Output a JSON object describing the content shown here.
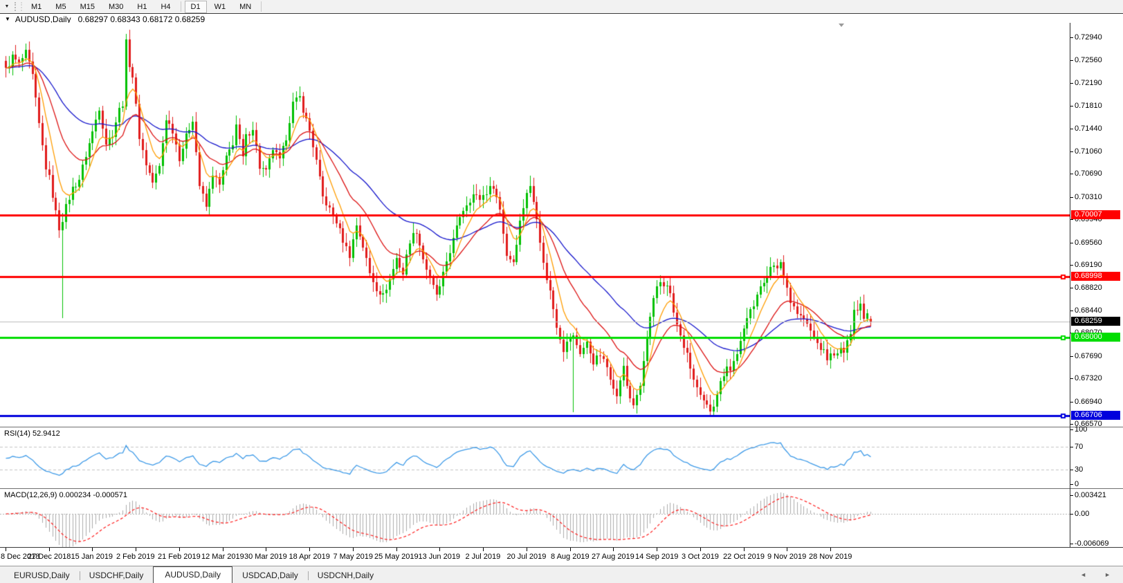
{
  "toolbar": {
    "dropdown_icon": "timeframe-dropdown",
    "timeframes": [
      {
        "label": "M1",
        "active": false
      },
      {
        "label": "M5",
        "active": false
      },
      {
        "label": "M15",
        "active": false
      },
      {
        "label": "M30",
        "active": false
      },
      {
        "label": "H1",
        "active": false
      },
      {
        "label": "H4",
        "active": false
      },
      {
        "label": "D1",
        "active": true
      },
      {
        "label": "W1",
        "active": false
      },
      {
        "label": "MN",
        "active": false
      }
    ]
  },
  "title": {
    "symbol": "AUDUSD,Daily",
    "ohlc": "0.68297 0.68343 0.68172 0.68259"
  },
  "chart_data": {
    "type": "candlestick",
    "symbol": "AUDUSD",
    "timeframe": "Daily",
    "current_bar": {
      "open": 0.68297,
      "high": 0.68343,
      "low": 0.68172,
      "close": 0.68259
    },
    "bar_count": 260,
    "y_axis_ticks": [
      "0.72940",
      "0.72560",
      "0.72190",
      "0.71810",
      "0.71440",
      "0.71060",
      "0.70690",
      "0.70310",
      "0.69940",
      "0.69560",
      "0.69190",
      "0.68820",
      "0.68440",
      "0.68070",
      "0.67690",
      "0.67320",
      "0.66940",
      "0.66570"
    ],
    "x_axis_labels": [
      "8 Dec 2018",
      "27 Dec 2018",
      "15 Jan 2019",
      "2 Feb 2019",
      "21 Feb 2019",
      "12 Mar 2019",
      "30 Mar 2019",
      "18 Apr 2019",
      "7 May 2019",
      "25 May 2019",
      "13 Jun 2019",
      "2 Jul 2019",
      "20 Jul 2019",
      "8 Aug 2019",
      "27 Aug 2019",
      "14 Sep 2019",
      "3 Oct 2019",
      "22 Oct 2019",
      "9 Nov 2019",
      "28 Nov 2019"
    ],
    "bars_per_label": 13,
    "candle_colors": {
      "bull": "#00c000",
      "bear": "#e11b1b"
    },
    "ma_colors": [
      "#ff9d00",
      "#dd1111",
      "#1414cc"
    ],
    "hlines": [
      {
        "price": 0.70007,
        "label": "0.70007",
        "color": "#ff0000",
        "handle": false
      },
      {
        "price": 0.68998,
        "label": "0.68998",
        "color": "#ff0000",
        "handle": true
      },
      {
        "price": 0.68,
        "label": "0.68000",
        "color": "#00dd00",
        "handle": true
      },
      {
        "price": 0.66706,
        "label": "0.66706",
        "color": "#0000dd",
        "handle": true
      }
    ],
    "current_price_line": {
      "price": 0.68259,
      "label": "0.68259",
      "line_color": "#bdbdbd",
      "tag_bg": "#000000"
    },
    "price_waypoints": [
      [
        0,
        0.724
      ],
      [
        2,
        0.7262
      ],
      [
        4,
        0.725
      ],
      [
        6,
        0.7268
      ],
      [
        8,
        0.723
      ],
      [
        10,
        0.715
      ],
      [
        12,
        0.708
      ],
      [
        13,
        0.7062
      ],
      [
        15,
        0.7005
      ],
      [
        16,
        0.698
      ],
      [
        17,
        0.6995
      ],
      [
        18,
        0.7015
      ],
      [
        20,
        0.7045
      ],
      [
        22,
        0.706
      ],
      [
        24,
        0.71
      ],
      [
        26,
        0.7138
      ],
      [
        28,
        0.7178
      ],
      [
        30,
        0.712
      ],
      [
        32,
        0.7135
      ],
      [
        34,
        0.7175
      ],
      [
        35,
        0.7185
      ],
      [
        36,
        0.7285
      ],
      [
        37,
        0.725
      ],
      [
        38,
        0.723
      ],
      [
        40,
        0.713
      ],
      [
        42,
        0.7085
      ],
      [
        44,
        0.7055
      ],
      [
        46,
        0.708
      ],
      [
        48,
        0.716
      ],
      [
        50,
        0.714
      ],
      [
        52,
        0.7095
      ],
      [
        54,
        0.713
      ],
      [
        56,
        0.716
      ],
      [
        58,
        0.705
      ],
      [
        60,
        0.7015
      ],
      [
        62,
        0.707
      ],
      [
        64,
        0.705
      ],
      [
        66,
        0.7095
      ],
      [
        68,
        0.712
      ],
      [
        69,
        0.715
      ],
      [
        71,
        0.7095
      ],
      [
        72,
        0.713
      ],
      [
        74,
        0.7145
      ],
      [
        76,
        0.708
      ],
      [
        78,
        0.7072
      ],
      [
        80,
        0.711
      ],
      [
        82,
        0.709
      ],
      [
        84,
        0.713
      ],
      [
        86,
        0.7185
      ],
      [
        88,
        0.7195
      ],
      [
        89,
        0.7175
      ],
      [
        91,
        0.714
      ],
      [
        93,
        0.709
      ],
      [
        95,
        0.703
      ],
      [
        97,
        0.701
      ],
      [
        99,
        0.699
      ],
      [
        101,
        0.696
      ],
      [
        103,
        0.6935
      ],
      [
        105,
        0.6985
      ],
      [
        107,
        0.695
      ],
      [
        109,
        0.6905
      ],
      [
        111,
        0.688
      ],
      [
        113,
        0.6868
      ],
      [
        115,
        0.6895
      ],
      [
        117,
        0.693
      ],
      [
        119,
        0.6905
      ],
      [
        121,
        0.696
      ],
      [
        123,
        0.6975
      ],
      [
        125,
        0.693
      ],
      [
        127,
        0.6895
      ],
      [
        129,
        0.687
      ],
      [
        130,
        0.688
      ],
      [
        132,
        0.6925
      ],
      [
        134,
        0.696
      ],
      [
        136,
        0.7
      ],
      [
        138,
        0.702
      ],
      [
        140,
        0.7035
      ],
      [
        142,
        0.7028
      ],
      [
        144,
        0.704
      ],
      [
        146,
        0.705
      ],
      [
        148,
        0.701
      ],
      [
        150,
        0.6935
      ],
      [
        152,
        0.6925
      ],
      [
        154,
        0.699
      ],
      [
        156,
        0.704
      ],
      [
        157,
        0.7047
      ],
      [
        159,
        0.7
      ],
      [
        161,
        0.692
      ],
      [
        163,
        0.6875
      ],
      [
        165,
        0.682
      ],
      [
        167,
        0.678
      ],
      [
        169,
        0.68
      ],
      [
        170,
        0.68
      ],
      [
        172,
        0.6775
      ],
      [
        174,
        0.679
      ],
      [
        176,
        0.676
      ],
      [
        178,
        0.677
      ],
      [
        180,
        0.675
      ],
      [
        182,
        0.672
      ],
      [
        183,
        0.67
      ],
      [
        184,
        0.673
      ],
      [
        185,
        0.675
      ],
      [
        186,
        0.672
      ],
      [
        187,
        0.67
      ],
      [
        188,
        0.669
      ],
      [
        189,
        0.67
      ],
      [
        190,
        0.672
      ],
      [
        191,
        0.676
      ],
      [
        192,
        0.68
      ],
      [
        193,
        0.683
      ],
      [
        194,
        0.686
      ],
      [
        195,
        0.688
      ],
      [
        196,
        0.689
      ],
      [
        197,
        0.6885
      ],
      [
        198,
        0.6888
      ],
      [
        199,
        0.687
      ],
      [
        200,
        0.684
      ],
      [
        202,
        0.68
      ],
      [
        204,
        0.677
      ],
      [
        206,
        0.673
      ],
      [
        208,
        0.67
      ],
      [
        210,
        0.6685
      ],
      [
        211,
        0.668
      ],
      [
        212,
        0.669
      ],
      [
        213,
        0.671
      ],
      [
        214,
        0.6725
      ],
      [
        216,
        0.6755
      ],
      [
        217,
        0.6745
      ],
      [
        218,
        0.676
      ],
      [
        220,
        0.679
      ],
      [
        222,
        0.683
      ],
      [
        223,
        0.685
      ],
      [
        224,
        0.6855
      ],
      [
        225,
        0.687
      ],
      [
        226,
        0.688
      ],
      [
        227,
        0.689
      ],
      [
        229,
        0.692
      ],
      [
        231,
        0.691
      ],
      [
        232,
        0.6925
      ],
      [
        233,
        0.69
      ],
      [
        235,
        0.6862
      ],
      [
        237,
        0.684
      ],
      [
        239,
        0.683
      ],
      [
        241,
        0.681
      ],
      [
        243,
        0.679
      ],
      [
        245,
        0.6775
      ],
      [
        246,
        0.6765
      ],
      [
        247,
        0.677
      ],
      [
        248,
        0.6775
      ],
      [
        249,
        0.677
      ],
      [
        250,
        0.678
      ],
      [
        251,
        0.6775
      ],
      [
        252,
        0.679
      ],
      [
        253,
        0.681
      ],
      [
        254,
        0.685
      ],
      [
        255,
        0.6845
      ],
      [
        256,
        0.6855
      ],
      [
        257,
        0.6835
      ],
      [
        258,
        0.684
      ],
      [
        259,
        0.68259
      ]
    ],
    "spikes": [
      {
        "i": 17,
        "low": 0.6831
      },
      {
        "i": 36,
        "high": 0.73
      },
      {
        "i": 170,
        "low": 0.6676
      },
      {
        "i": 183,
        "low": 0.669
      },
      {
        "i": 188,
        "low": 0.6682
      },
      {
        "i": 211,
        "low": 0.6671
      },
      {
        "i": 246,
        "low": 0.6754
      }
    ],
    "rsi": {
      "label": "RSI(14) 52.9412",
      "period": 14,
      "current": 52.9412,
      "upper_level": 70,
      "lower_level": 30,
      "axis_labels": [
        "100",
        "70",
        "30",
        "0"
      ],
      "color": "#3d9ae8"
    },
    "macd": {
      "label": "MACD(12,26,9) 0.000234 -0.000571",
      "value": 0.000234,
      "signal_value": -0.000571,
      "axis_labels": [
        "0.003421",
        "0.00",
        "-0.006069"
      ],
      "hist_color": "#ababab",
      "signal_color": "#ff1a1a"
    }
  },
  "tabs": [
    {
      "label": "EURUSD,Daily",
      "active": false
    },
    {
      "label": "USDCHF,Daily",
      "active": false
    },
    {
      "label": "AUDUSD,Daily",
      "active": true
    },
    {
      "label": "USDCAD,Daily",
      "active": false
    },
    {
      "label": "USDCNH,Daily",
      "active": false
    }
  ],
  "tab_scroll": {
    "left_arrow": "◄",
    "right_arrow": "►"
  }
}
